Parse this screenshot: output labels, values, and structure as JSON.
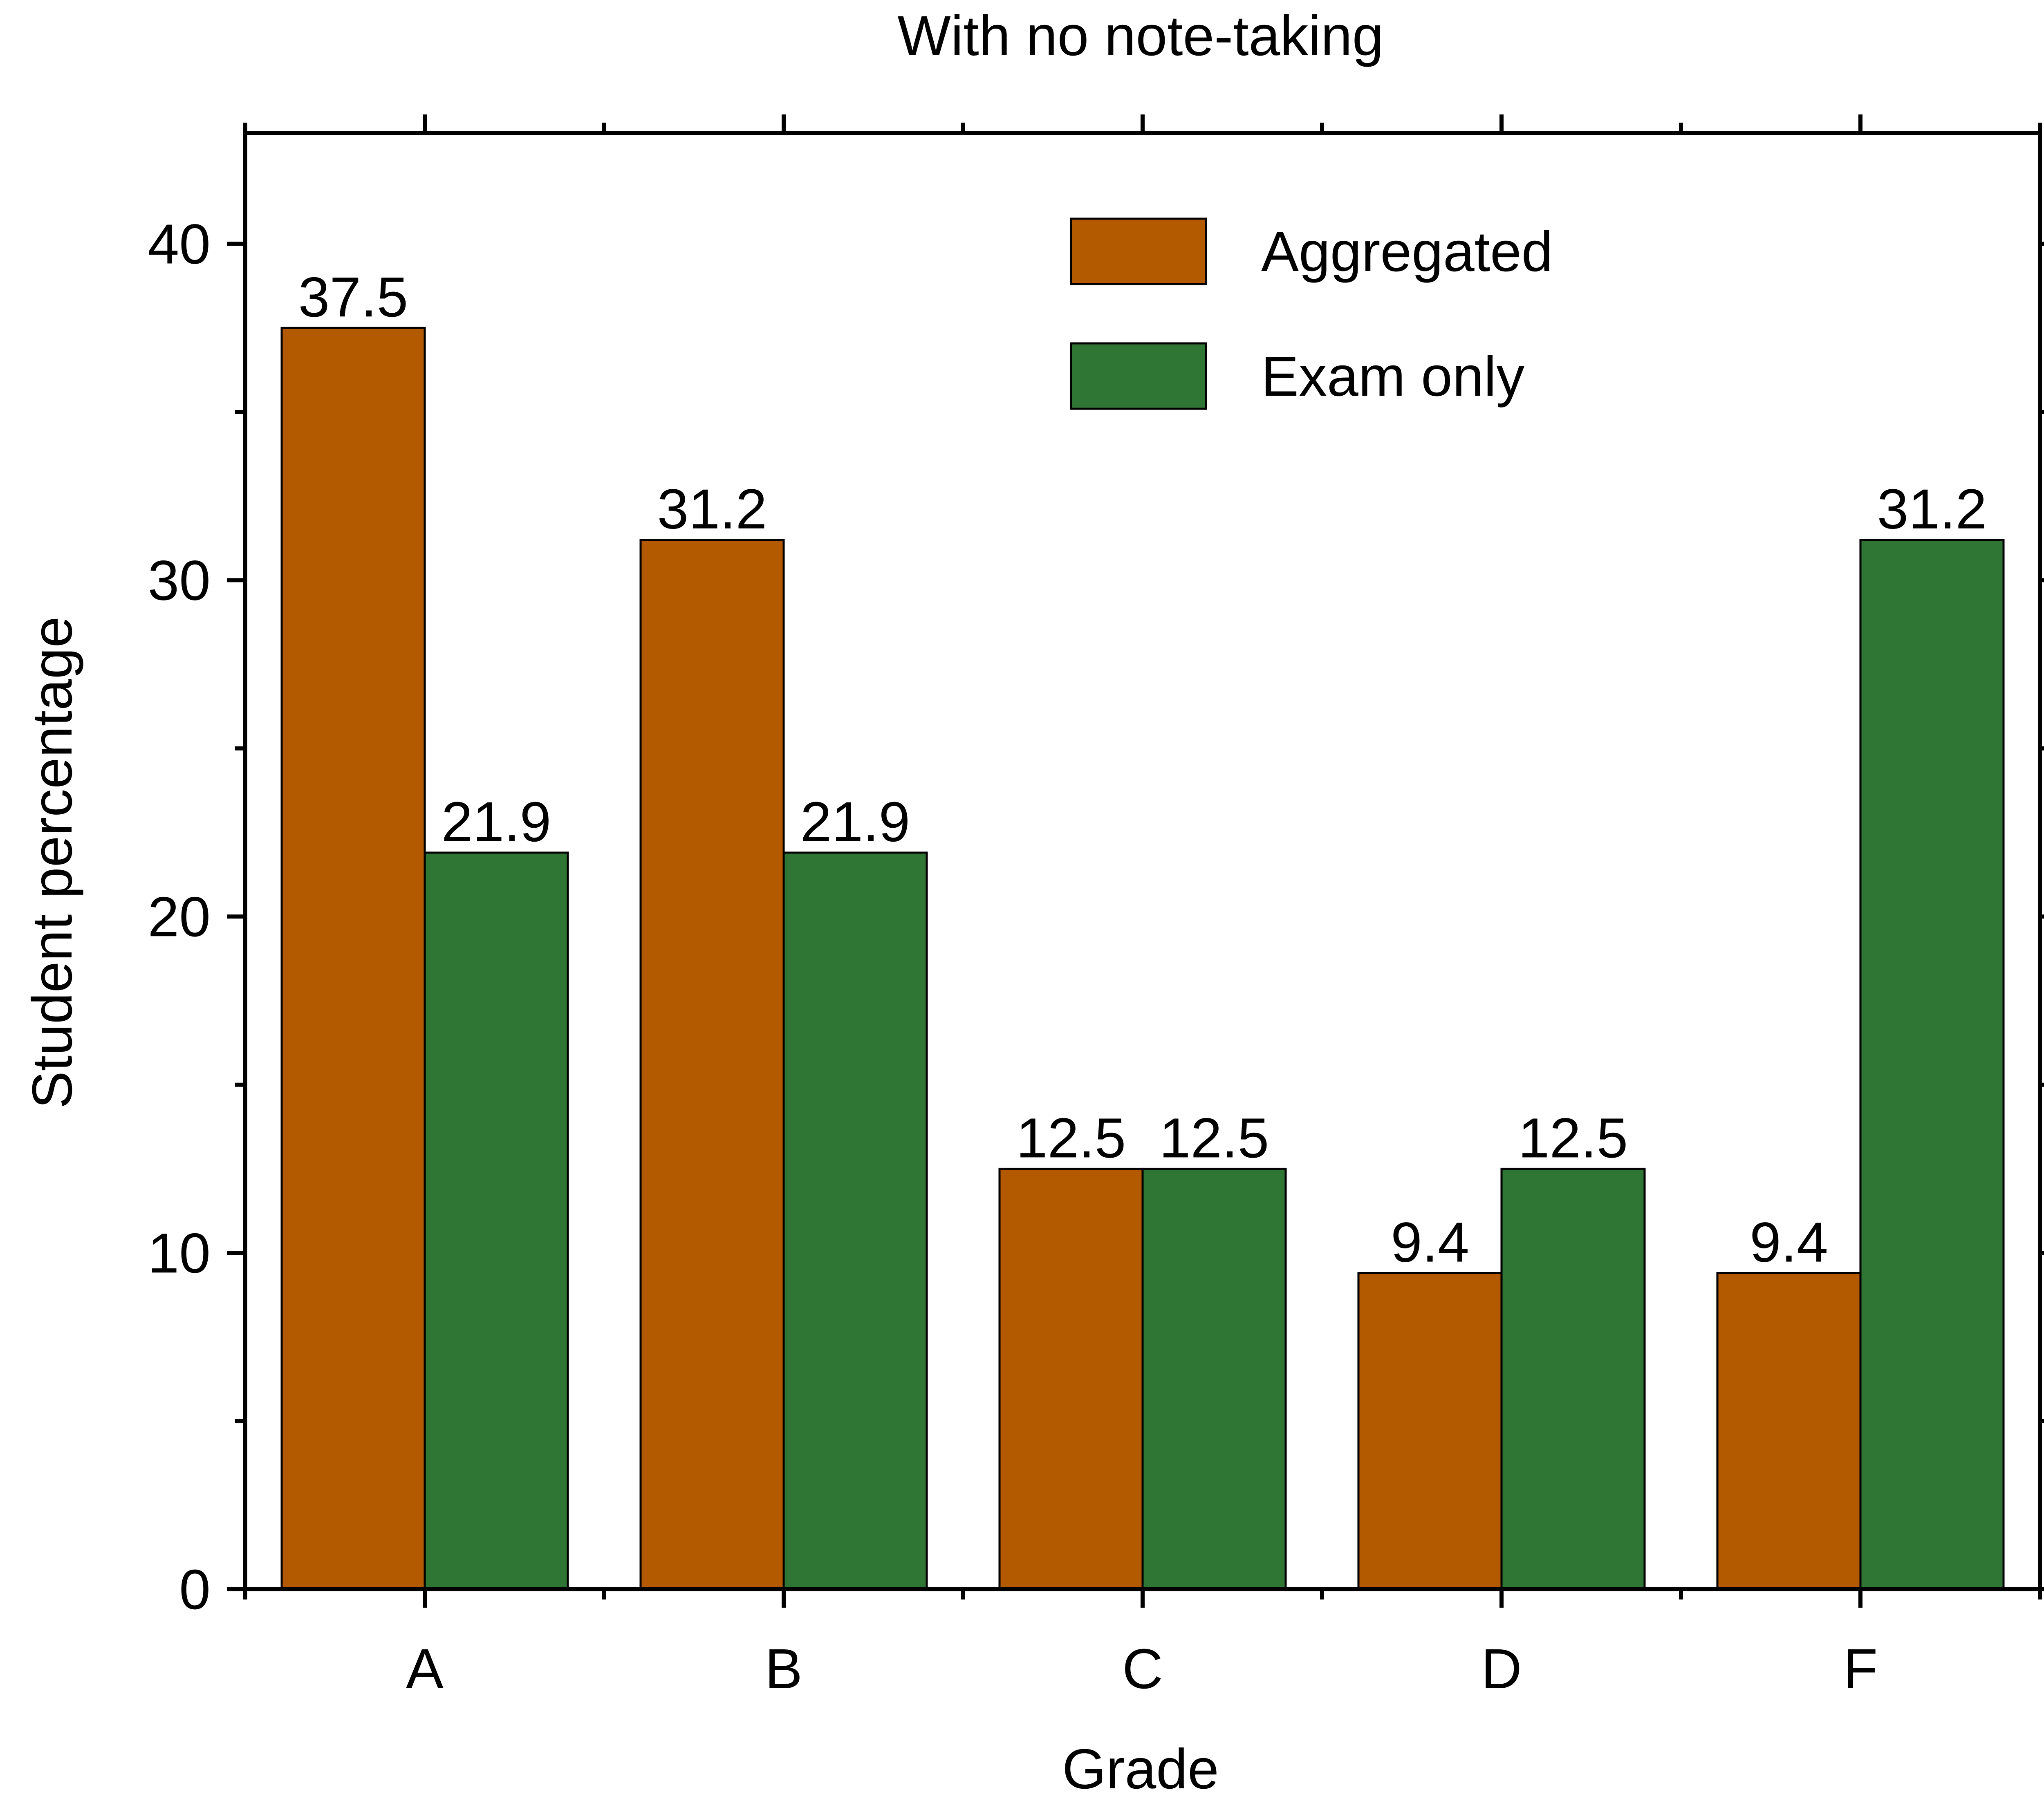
{
  "chart_data": {
    "type": "bar",
    "title": "With no note-taking",
    "xlabel": "Grade",
    "ylabel": "Student percentage",
    "categories": [
      "A",
      "B",
      "C",
      "D",
      "F"
    ],
    "series": [
      {
        "name": "Aggregated",
        "color": "#b35900",
        "values": [
          37.5,
          31.2,
          12.5,
          9.4,
          9.4
        ]
      },
      {
        "name": "Exam only",
        "color": "#2f7533",
        "values": [
          21.9,
          21.9,
          12.5,
          12.5,
          31.2
        ]
      }
    ],
    "value_labels": [
      [
        "37.5",
        "31.2",
        "12.5",
        "9.4",
        "9.4"
      ],
      [
        "21.9",
        "21.9",
        "12.5",
        "12.5",
        "31.2"
      ]
    ],
    "ylim": [
      0,
      43.3
    ],
    "yticks": [
      0,
      10,
      20,
      30,
      40
    ],
    "ytick_labels": [
      "0",
      "10",
      "20",
      "30",
      "40"
    ],
    "grid": false,
    "legend_position": "top-center"
  }
}
